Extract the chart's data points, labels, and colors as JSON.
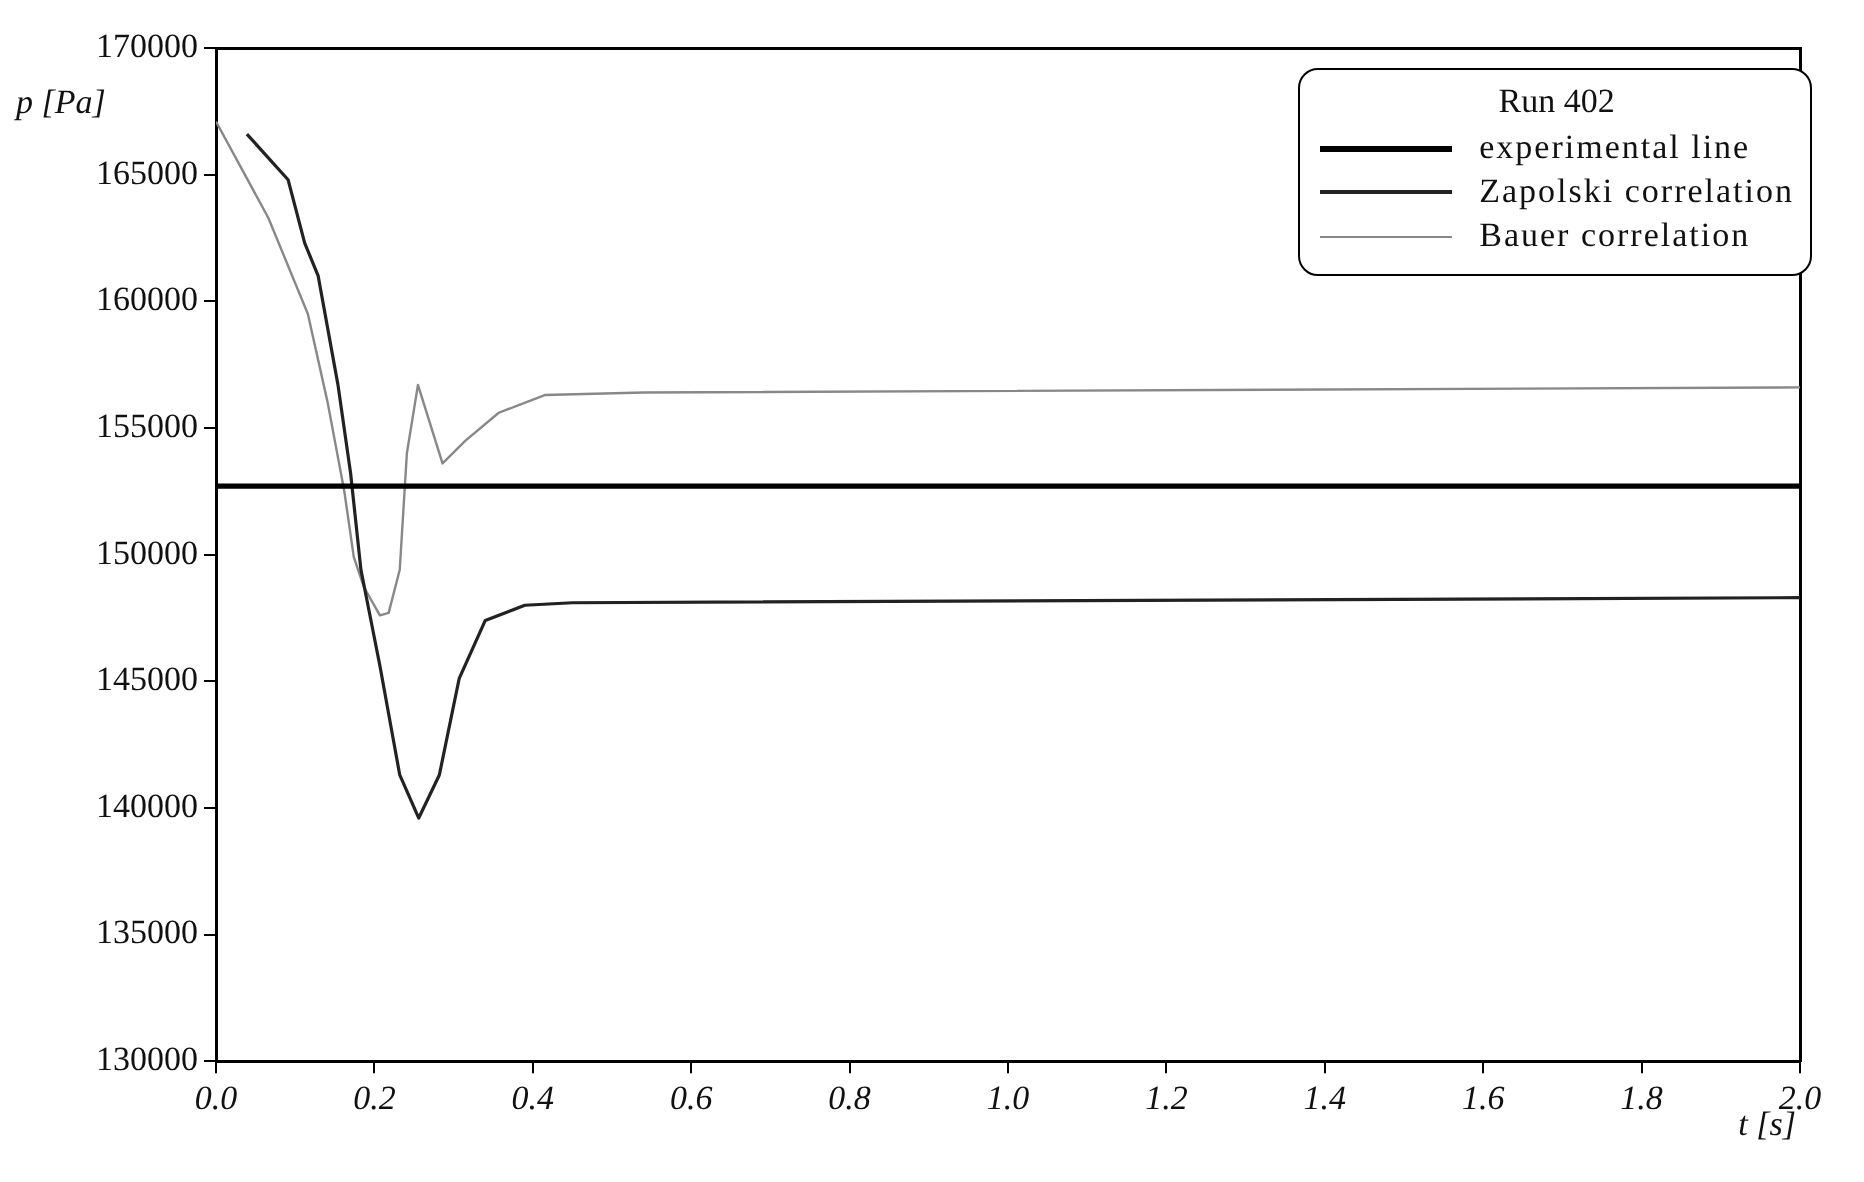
{
  "chart_data": {
    "type": "line",
    "xlabel": "t [s]",
    "ylabel": "p [Pa]",
    "legend_title": "Run 402",
    "legend": "top right",
    "grid": false,
    "marker": "none",
    "line_style": "solid",
    "xlim": [
      0,
      2
    ],
    "xticks": [
      {
        "value": 0,
        "label": "0.0"
      },
      {
        "value": 0.2,
        "label": "0.2"
      },
      {
        "value": 0.4,
        "label": "0.4"
      },
      {
        "value": 0.6,
        "label": "0.6"
      },
      {
        "value": 0.8,
        "label": "0.8"
      },
      {
        "value": 1,
        "label": "1.0"
      },
      {
        "value": 1.2,
        "label": "1.2"
      },
      {
        "value": 1.4,
        "label": "1.4"
      },
      {
        "value": 1.6,
        "label": "1.6"
      },
      {
        "value": 1.8,
        "label": "1.8"
      },
      {
        "value": 2,
        "label": "2.0"
      }
    ],
    "ylim": [
      130000,
      170000
    ],
    "yticks": [
      130000,
      135000,
      140000,
      145000,
      150000,
      155000,
      160000,
      165000,
      170000
    ],
    "series": [
      {
        "name": "experimental line",
        "color": "#000000",
        "x": [
          0,
          2
        ],
        "values": [
          152700,
          152700
        ]
      },
      {
        "name": "Zapolski correlation",
        "color": "#222222",
        "x": [
          0.039,
          0.091,
          0.112,
          0.129,
          0.154,
          0.17,
          0.183,
          0.207,
          0.232,
          0.256,
          0.282,
          0.307,
          0.34,
          0.39,
          0.45,
          2
        ],
        "values": [
          166600,
          164800,
          162300,
          161000,
          156700,
          153200,
          149400,
          145600,
          141300,
          139600,
          141300,
          145100,
          147400,
          148000,
          148100,
          148300
        ]
      },
      {
        "name": "Bauer correlation",
        "color": "#888888",
        "x": [
          0,
          0.066,
          0.116,
          0.141,
          0.162,
          0.174,
          0.187,
          0.207,
          0.218,
          0.232,
          0.241,
          0.255,
          0.27,
          0.286,
          0.315,
          0.357,
          0.415,
          0.54,
          2
        ],
        "values": [
          167100,
          163300,
          159500,
          156000,
          152500,
          149900,
          148700,
          147600,
          147700,
          149400,
          154000,
          156700,
          155200,
          153600,
          154500,
          155600,
          156300,
          156400,
          156600
        ]
      }
    ]
  }
}
